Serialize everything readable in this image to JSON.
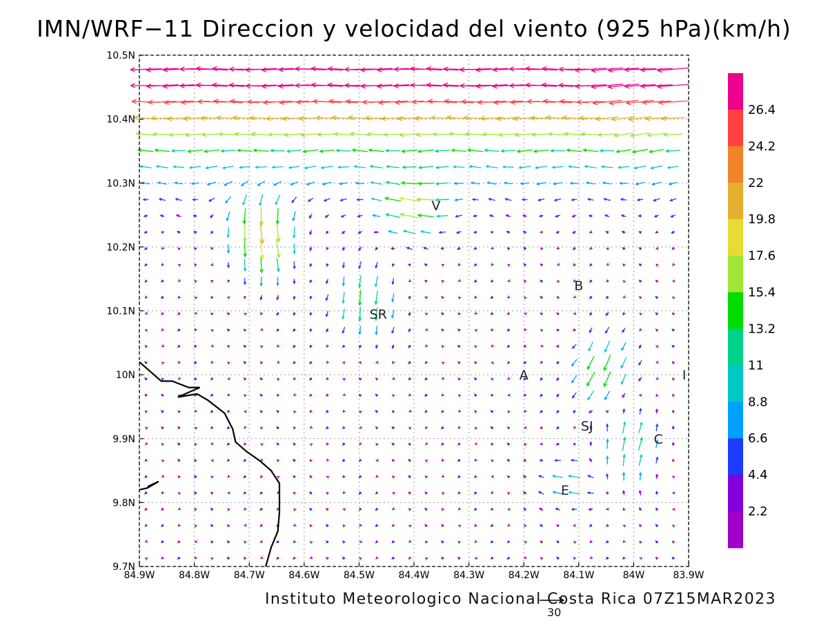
{
  "header": {
    "title": "IMN/WRF−11 Direccion y velocidad del viento (925 hPa)(km/h)"
  },
  "footer": {
    "credit": "Instituto Meteorologico Nacional Costa Rica 07Z15MAR2023",
    "reference_vector_label": "30"
  },
  "chart_data": {
    "type": "vector-field",
    "title": "IMN/WRF−11 Direccion y velocidad del viento (925 hPa)(km/h)",
    "units": "km/h",
    "xlim": [
      -84.9,
      -83.9
    ],
    "ylim": [
      9.7,
      10.5
    ],
    "x_ticks": [
      {
        "value": -84.9,
        "label": "84.9W"
      },
      {
        "value": -84.8,
        "label": "84.8W"
      },
      {
        "value": -84.7,
        "label": "84.7W"
      },
      {
        "value": -84.6,
        "label": "84.6W"
      },
      {
        "value": -84.5,
        "label": "84.5W"
      },
      {
        "value": -84.4,
        "label": "84.4W"
      },
      {
        "value": -84.3,
        "label": "84.3W"
      },
      {
        "value": -84.2,
        "label": "84.2W"
      },
      {
        "value": -84.1,
        "label": "84.1W"
      },
      {
        "value": -84.0,
        "label": "84W"
      },
      {
        "value": -83.9,
        "label": "83.9W"
      }
    ],
    "y_ticks": [
      {
        "value": 10.5,
        "label": "10.5N"
      },
      {
        "value": 10.4,
        "label": "10.4N"
      },
      {
        "value": 10.3,
        "label": "10.3N"
      },
      {
        "value": 10.2,
        "label": "10.2N"
      },
      {
        "value": 10.1,
        "label": "10.1N"
      },
      {
        "value": 10.0,
        "label": "10N"
      },
      {
        "value": 9.9,
        "label": "9.9N"
      },
      {
        "value": 9.8,
        "label": "9.8N"
      },
      {
        "value": 9.7,
        "label": "9.7N"
      }
    ],
    "grid": true,
    "legend": {
      "placement": "right",
      "levels": [
        "26.4",
        "24.2",
        "22",
        "19.8",
        "17.6",
        "15.4",
        "13.2",
        "11",
        "8.8",
        "6.6",
        "4.4",
        "2.2"
      ],
      "colors": [
        "#ec008c",
        "#ff4040",
        "#f08228",
        "#e6af2d",
        "#e6dc32",
        "#a0e632",
        "#00dc00",
        "#00d28c",
        "#00c8c8",
        "#00a0ff",
        "#1e3cff",
        "#8200dc",
        "#a000c8"
      ]
    },
    "station_labels": [
      {
        "label": "V",
        "lon": -84.36,
        "lat": 10.265
      },
      {
        "label": "SR",
        "lon": -84.465,
        "lat": 10.095
      },
      {
        "label": "B",
        "lon": -84.1,
        "lat": 10.14
      },
      {
        "label": "A",
        "lon": -84.2,
        "lat": 10.0
      },
      {
        "label": "SJ",
        "lon": -84.085,
        "lat": 9.92
      },
      {
        "label": "I",
        "lon": -83.908,
        "lat": 10.0
      },
      {
        "label": "C",
        "lon": -83.955,
        "lat": 9.9
      },
      {
        "label": "E",
        "lon": -84.125,
        "lat": 9.82
      }
    ],
    "coastline": [
      [
        -84.9,
        10.02
      ],
      [
        -84.86,
        9.99
      ],
      [
        -84.84,
        9.99
      ],
      [
        -84.81,
        9.98
      ],
      [
        -84.79,
        9.98
      ],
      [
        -84.83,
        9.965
      ],
      [
        -84.795,
        9.97
      ],
      [
        -84.775,
        9.96
      ],
      [
        -84.745,
        9.94
      ],
      [
        -84.73,
        9.915
      ],
      [
        -84.725,
        9.895
      ],
      [
        -84.705,
        9.88
      ],
      [
        -84.68,
        9.865
      ],
      [
        -84.66,
        9.85
      ],
      [
        -84.645,
        9.83
      ],
      [
        -84.645,
        9.785
      ],
      [
        -84.648,
        9.755
      ],
      [
        -84.66,
        9.73
      ],
      [
        -84.67,
        9.7
      ]
    ],
    "coastline_island": [
      [
        -84.9,
        9.82
      ],
      [
        -84.885,
        9.823
      ],
      [
        -84.865,
        9.833
      ],
      [
        -84.885,
        9.825
      ]
    ],
    "wind_note": "Vector field (u, v) in km/h sampled on a regular grid; dominant easterly flow, strongest (>24 km/h) in the northern band near 10.45N, weak (<4 km/h) winds in the southwestern quadrant."
  }
}
